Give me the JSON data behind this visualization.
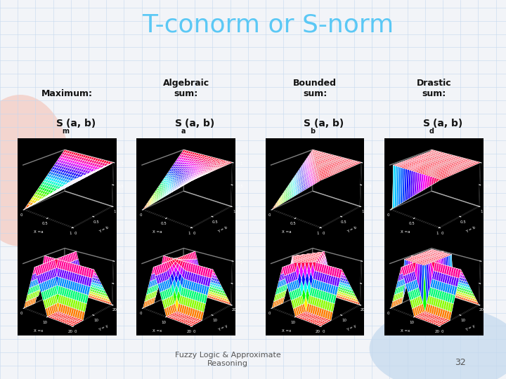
{
  "title": "T-conorm or S-norm",
  "title_color": "#5BC8F5",
  "title_fontsize": 26,
  "background_color": "#F2F4F8",
  "labels": [
    {
      "line1": "Maximum:",
      "line2": "S",
      "sub": "m",
      "line3": "(a, b)"
    },
    {
      "line1": "Algebraic",
      "line1b": "sum:",
      "line2": "S",
      "sub": "a",
      "line3": "(a, b)"
    },
    {
      "line1": "Bounded",
      "line1b": "sum:",
      "line2": "S",
      "sub": "b",
      "line3": "(a, b)"
    },
    {
      "line1": "Drastic",
      "line1b": "sum:",
      "line2": "S",
      "sub": "d",
      "line3": "(a, b)"
    }
  ],
  "footer_text": "Fuzzy Logic & Approximate\nReasoning",
  "page_number": "32",
  "footer_fontsize": 8,
  "label_fontsize": 9
}
